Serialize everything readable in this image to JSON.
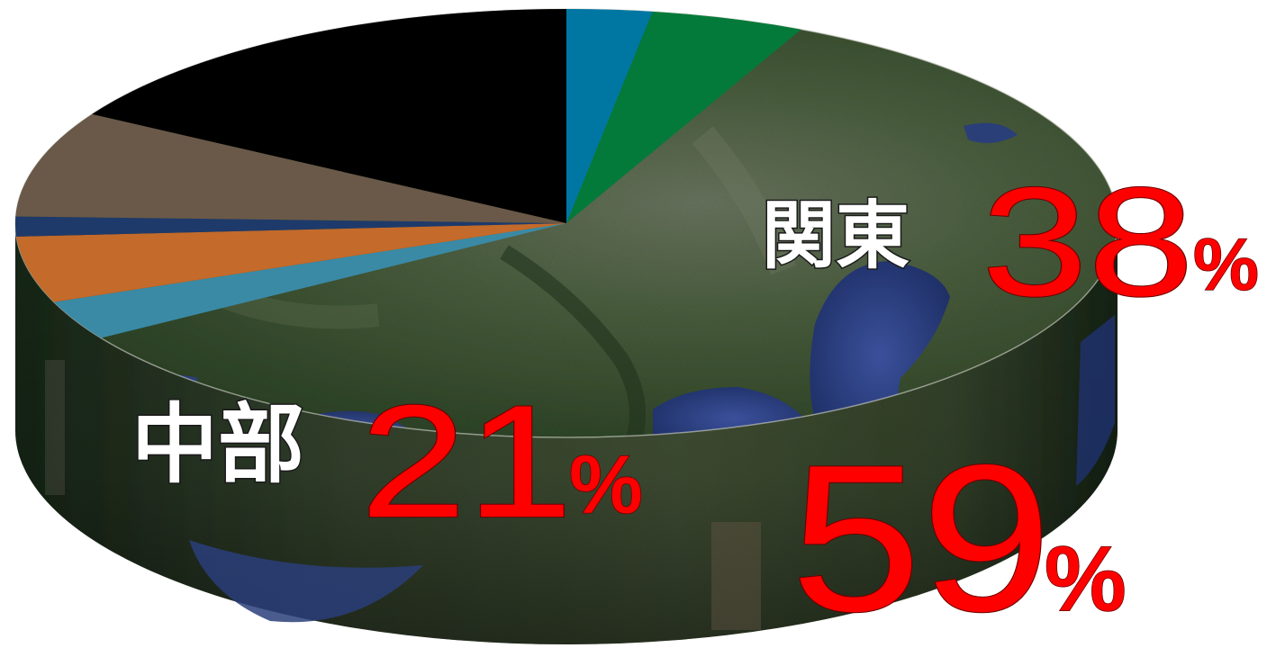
{
  "chart_data": {
    "type": "pie",
    "style": "3d-pie-with-satellite-map-texture",
    "slices": [
      {
        "label": "",
        "value": 2.5,
        "color": "#0077a3"
      },
      {
        "label": "",
        "value": 4.5,
        "color": "#047a3a"
      },
      {
        "label": "関東",
        "value": 38,
        "color": "#3f5a36",
        "pct_text": "38"
      },
      {
        "label": "中部",
        "value": 21,
        "color": "#2f4a2c",
        "pct_text": "21"
      },
      {
        "label": "",
        "value": 3,
        "color": "#3a8aa6"
      },
      {
        "label": "",
        "value": 5,
        "color": "#c46a2a"
      },
      {
        "label": "",
        "value": 1.5,
        "color": "#1e3a6a"
      },
      {
        "label": "",
        "value": 8,
        "color": "#6a5948"
      },
      {
        "label": "",
        "value": 16.5,
        "color": "#000000"
      }
    ],
    "combined": {
      "value_text": "59"
    },
    "percent_sign": "%",
    "legend": "none",
    "colors": {
      "label_text": "#ffffff",
      "percent_text": "#ff0000",
      "map_land": "#3d5234",
      "map_water": "#2a3f78"
    }
  }
}
